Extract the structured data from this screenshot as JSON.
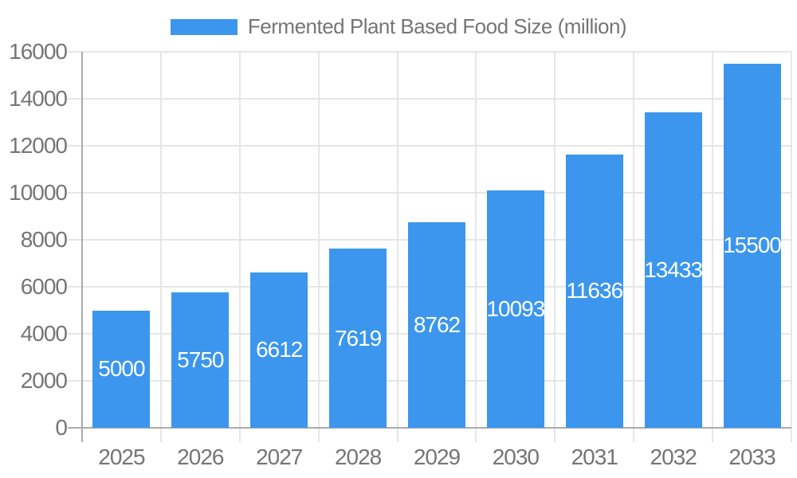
{
  "legend": {
    "label": "Fermented Plant Based Food Size (million)"
  },
  "colors": {
    "bar": "#3C96ED",
    "grid": "#E6E6E6",
    "axis": "#ABABAB",
    "text": "#757575",
    "bar_label": "#FFFFFF",
    "background": "#FFFFFF"
  },
  "chart_data": {
    "type": "bar",
    "title": "Fermented Plant Based Food Size (million)",
    "series_name": "Fermented Plant Based Food Size (million)",
    "categories": [
      "2025",
      "2026",
      "2027",
      "2028",
      "2029",
      "2030",
      "2031",
      "2032",
      "2033"
    ],
    "values": [
      5000,
      5750,
      6612,
      7619,
      8762,
      10093,
      11636,
      13433,
      15500
    ],
    "bar_value_labels": [
      "5000",
      "5750",
      "6612",
      "7619",
      "8762",
      "10093",
      "11636",
      "13433",
      "15500"
    ],
    "xlabel": "",
    "ylabel": "",
    "ylim": [
      0,
      16000
    ],
    "ytick_step": 2000,
    "ytick_labels": [
      "0",
      "2000",
      "4000",
      "6000",
      "8000",
      "10000",
      "12000",
      "14000",
      "16000"
    ],
    "grid": true,
    "legend_position": "top",
    "bar_labels_position": "inside-center"
  }
}
